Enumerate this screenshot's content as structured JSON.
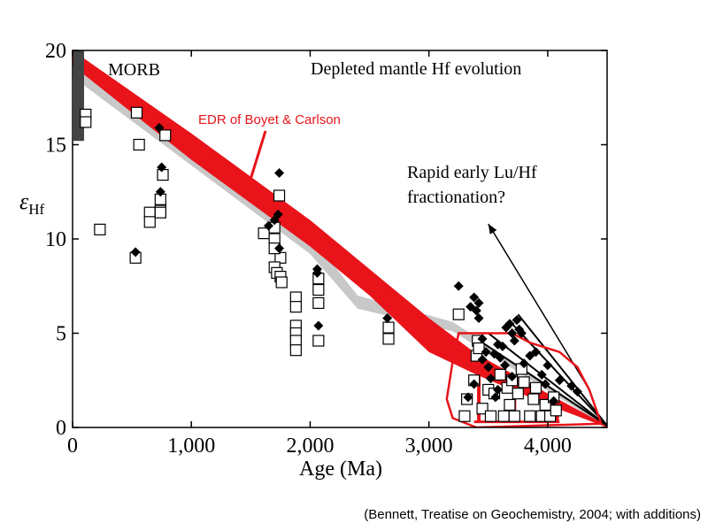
{
  "chart_data": {
    "type": "scatter",
    "title": "Depleted mantle Hf evolution",
    "xlabel": "Age (Ma)",
    "ylabel_symbol": "ε",
    "ylabel_sub": "Hf",
    "xlim": [
      0,
      4500
    ],
    "ylim": [
      0,
      20
    ],
    "xticks": [
      0,
      1000,
      2000,
      3000,
      4000
    ],
    "xtick_labels": [
      "0",
      "1,000",
      "2,000",
      "3,000",
      "4,000"
    ],
    "yticks": [
      0,
      5,
      10,
      15,
      20
    ],
    "ytick_labels": [
      "0",
      "5",
      "10",
      "15",
      "20"
    ],
    "grid": false,
    "annotations": {
      "morb": "MORB",
      "edr": "EDR of Boyet & Carlson",
      "rapid_line1": "Rapid early Lu/Hf",
      "rapid_line2": "fractionation?",
      "citation": "(Bennett, Treatise on Geochemistry, 2004; with additions)"
    },
    "colors": {
      "red": "#e8141a",
      "grey": "#c8c8c8",
      "morb_bar": "#444444",
      "black": "#000000"
    },
    "morb_range": {
      "x": 0,
      "y": [
        15.2,
        20
      ]
    },
    "red_band": {
      "upper": [
        [
          0,
          20.0
        ],
        [
          1000,
          15.6
        ],
        [
          2000,
          11.0
        ],
        [
          2500,
          8.4
        ],
        [
          3000,
          5.8
        ],
        [
          3400,
          3.9
        ],
        [
          4000,
          1.8
        ],
        [
          4500,
          0.1
        ]
      ],
      "lower": [
        [
          0,
          19.2
        ],
        [
          1000,
          14.2
        ],
        [
          2000,
          9.6
        ],
        [
          2500,
          7.0
        ],
        [
          3000,
          4.0
        ],
        [
          3400,
          2.8
        ],
        [
          4000,
          1.2
        ],
        [
          4500,
          0.0
        ]
      ]
    },
    "grey_band": {
      "upper": [
        [
          0,
          19.2
        ],
        [
          1000,
          14.8
        ],
        [
          2000,
          10.2
        ],
        [
          2400,
          7.0
        ],
        [
          3200,
          5.6
        ],
        [
          4500,
          0.2
        ]
      ],
      "lower": [
        [
          0,
          18.6
        ],
        [
          1000,
          13.9
        ],
        [
          2000,
          9.2
        ],
        [
          2400,
          6.3
        ],
        [
          3200,
          5.1
        ],
        [
          4500,
          0.0
        ]
      ]
    },
    "rapid_lines": [
      [
        [
          3450,
          4.5
        ],
        [
          4500,
          0.1
        ]
      ],
      [
        [
          3500,
          5.0
        ],
        [
          4500,
          0.1
        ]
      ],
      [
        [
          3700,
          5.5
        ],
        [
          4500,
          0.1
        ]
      ],
      [
        [
          3750,
          6.0
        ],
        [
          4500,
          0.1
        ]
      ]
    ],
    "arrow": {
      "from": [
        4350,
        2.0
      ],
      "to": [
        3500,
        10.8
      ]
    },
    "red_outline": [
      [
        3250,
        5.0
      ],
      [
        3700,
        5.0
      ],
      [
        3850,
        4.5
      ],
      [
        4100,
        4.0
      ],
      [
        4250,
        3.2
      ],
      [
        4350,
        2.0
      ],
      [
        4450,
        0.2
      ],
      [
        3400,
        0.0
      ],
      [
        3200,
        0.5
      ],
      [
        3150,
        1.5
      ],
      [
        3200,
        3.5
      ]
    ],
    "red_bracket_lines": [
      {
        "x": 3420,
        "y": [
          0.3,
          3.5
        ]
      },
      {
        "x": 3720,
        "y": [
          0.3,
          2.4
        ]
      },
      {
        "x": 4080,
        "y": [
          0.3,
          1.2
        ]
      }
    ],
    "red_bracket_hbar": {
      "y": 0.3,
      "x": [
        3380,
        4100
      ]
    },
    "series": [
      {
        "marker": "open-square",
        "points": [
          [
            110,
            16.6
          ],
          [
            110,
            16.2
          ],
          [
            230,
            10.5
          ],
          [
            540,
            16.7
          ],
          [
            560,
            15.0
          ],
          [
            530,
            9.0
          ],
          [
            650,
            11.4
          ],
          [
            650,
            10.9
          ],
          [
            740,
            11.5
          ],
          [
            740,
            11.4
          ],
          [
            740,
            12.1
          ],
          [
            760,
            13.4
          ],
          [
            780,
            15.5
          ],
          [
            1610,
            10.3
          ],
          [
            1700,
            10.6
          ],
          [
            1700,
            10.0
          ],
          [
            1740,
            12.3
          ],
          [
            1750,
            9.0
          ],
          [
            1700,
            8.5
          ],
          [
            1720,
            8.2
          ],
          [
            1750,
            8.0
          ],
          [
            1760,
            7.7
          ],
          [
            1700,
            9.5
          ],
          [
            1880,
            6.9
          ],
          [
            1880,
            6.4
          ],
          [
            1880,
            5.4
          ],
          [
            1880,
            5.0
          ],
          [
            1880,
            4.6
          ],
          [
            1880,
            4.1
          ],
          [
            2070,
            7.9
          ],
          [
            2070,
            7.3
          ],
          [
            2070,
            6.6
          ],
          [
            2070,
            4.6
          ],
          [
            2660,
            5.3
          ],
          [
            2660,
            4.7
          ],
          [
            3250,
            6.0
          ],
          [
            3300,
            0.6
          ],
          [
            3320,
            1.5
          ],
          [
            3380,
            2.5
          ],
          [
            3400,
            3.8
          ],
          [
            3410,
            4.6
          ],
          [
            3420,
            4.2
          ],
          [
            3450,
            1.0
          ],
          [
            3500,
            2.0
          ],
          [
            3520,
            0.6
          ],
          [
            3550,
            1.8
          ],
          [
            3600,
            2.8
          ],
          [
            3630,
            0.6
          ],
          [
            3660,
            2.1
          ],
          [
            3680,
            1.2
          ],
          [
            3700,
            2.5
          ],
          [
            3720,
            0.6
          ],
          [
            3750,
            1.8
          ],
          [
            3780,
            3.1
          ],
          [
            3800,
            2.4
          ],
          [
            3850,
            0.6
          ],
          [
            3880,
            1.5
          ],
          [
            3900,
            2.1
          ],
          [
            3950,
            0.6
          ],
          [
            3980,
            1.2
          ],
          [
            4020,
            0.6
          ],
          [
            4050,
            1.6
          ],
          [
            4070,
            0.9
          ]
        ]
      },
      {
        "marker": "filled-diamond",
        "points": [
          [
            530,
            9.3
          ],
          [
            730,
            15.9
          ],
          [
            750,
            13.8
          ],
          [
            740,
            12.5
          ],
          [
            1650,
            10.7
          ],
          [
            1700,
            11.0
          ],
          [
            1740,
            13.5
          ],
          [
            1730,
            11.3
          ],
          [
            1740,
            9.5
          ],
          [
            2060,
            8.4
          ],
          [
            2060,
            8.2
          ],
          [
            2070,
            5.4
          ],
          [
            2650,
            5.8
          ],
          [
            3250,
            7.5
          ],
          [
            3350,
            6.4
          ],
          [
            3380,
            6.9
          ],
          [
            3400,
            6.2
          ],
          [
            3420,
            6.6
          ],
          [
            3420,
            5.8
          ],
          [
            3450,
            4.7
          ],
          [
            3450,
            3.6
          ],
          [
            3480,
            4.0
          ],
          [
            3500,
            3.2
          ],
          [
            3520,
            2.6
          ],
          [
            3550,
            3.9
          ],
          [
            3580,
            4.4
          ],
          [
            3600,
            3.7
          ],
          [
            3620,
            4.3
          ],
          [
            3640,
            3.3
          ],
          [
            3650,
            5.3
          ],
          [
            3680,
            5.5
          ],
          [
            3700,
            5.0
          ],
          [
            3720,
            4.6
          ],
          [
            3740,
            5.7
          ],
          [
            3760,
            5.2
          ],
          [
            3780,
            5.0
          ],
          [
            3800,
            3.4
          ],
          [
            3850,
            3.8
          ],
          [
            3900,
            4.0
          ],
          [
            3950,
            2.8
          ],
          [
            3980,
            2.3
          ],
          [
            4000,
            3.3
          ],
          [
            4050,
            1.4
          ],
          [
            4100,
            2.5
          ],
          [
            4200,
            2.2
          ],
          [
            4250,
            1.9
          ],
          [
            3330,
            1.6
          ],
          [
            3380,
            2.3
          ],
          [
            3560,
            1.6
          ],
          [
            3700,
            2.7
          ],
          [
            3580,
            2.0
          ]
        ]
      }
    ]
  }
}
